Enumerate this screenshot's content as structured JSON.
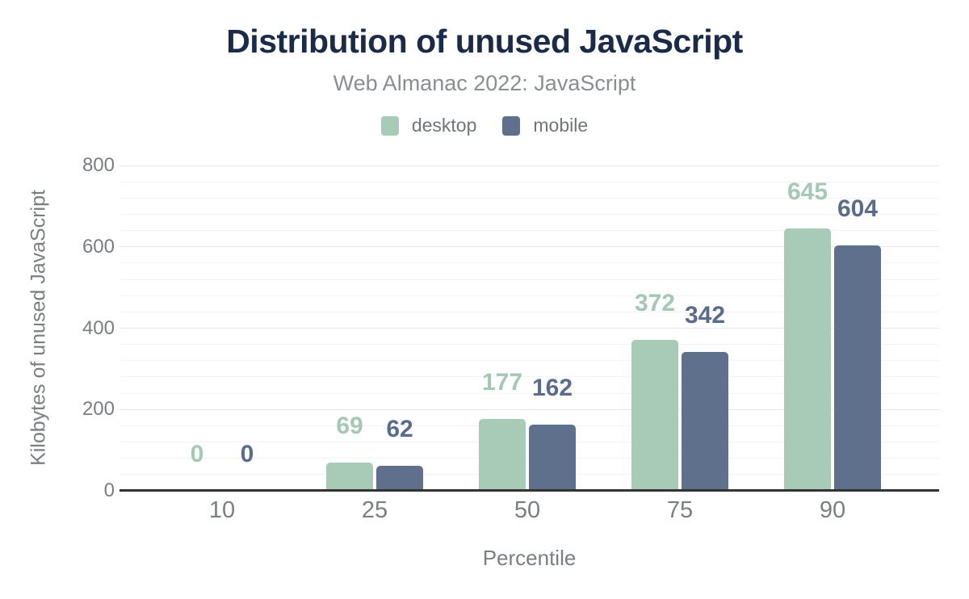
{
  "chart_data": {
    "type": "bar",
    "title": "Distribution of unused JavaScript",
    "subtitle": "Web Almanac 2022: JavaScript",
    "xlabel": "Percentile",
    "ylabel": "Kilobytes of unused JavaScript",
    "categories": [
      "10",
      "25",
      "50",
      "75",
      "90"
    ],
    "series": [
      {
        "name": "desktop",
        "color": "#a8cbb8",
        "label_color": "#a5c8b5",
        "values": [
          0,
          69,
          177,
          372,
          645
        ]
      },
      {
        "name": "mobile",
        "color": "#5f708c",
        "label_color": "#5a6c8e",
        "values": [
          0,
          62,
          162,
          342,
          604
        ]
      }
    ],
    "ylim": [
      0,
      800
    ],
    "yticks": [
      0,
      200,
      400,
      600,
      800
    ],
    "minor_tick_step": 40,
    "grid": true,
    "legend_position": "top",
    "data_labels": true
  },
  "colors": {
    "title": "#1a2b49",
    "subtitle": "#8a8e91",
    "axis_text": "#7b7e81",
    "legend_text": "#717478",
    "grid_major": "#e8e8e8",
    "grid_minor": "#f4f4f4",
    "axis_line": "#333333"
  }
}
